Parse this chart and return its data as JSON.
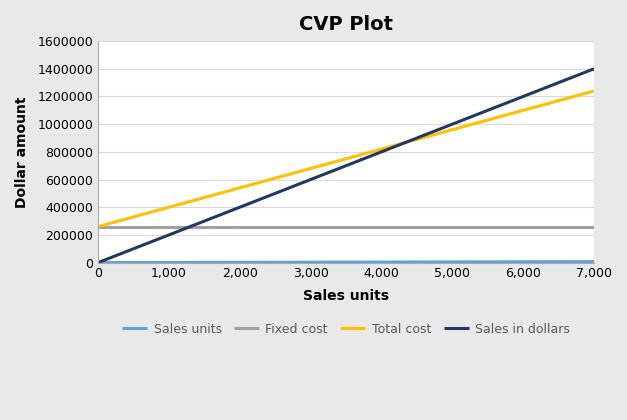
{
  "title": "CVP Plot",
  "xlabel": "Sales units",
  "ylabel": "Dollar amount",
  "xlim": [
    0,
    7000
  ],
  "ylim": [
    0,
    1600000
  ],
  "xticks": [
    0,
    1000,
    2000,
    3000,
    4000,
    5000,
    6000,
    7000
  ],
  "yticks": [
    0,
    200000,
    400000,
    600000,
    800000,
    1000000,
    1200000,
    1400000,
    1600000
  ],
  "lines": [
    {
      "label": "Sales units",
      "color": "#5BA3D9",
      "x": [
        0,
        7000
      ],
      "y": [
        0,
        7000
      ],
      "linewidth": 2.2
    },
    {
      "label": "Fixed cost",
      "color": "#A0A0A0",
      "x": [
        0,
        7000
      ],
      "y": [
        260000,
        260000
      ],
      "linewidth": 2.2
    },
    {
      "label": "Total cost",
      "color": "#FFC000",
      "x": [
        0,
        7000
      ],
      "y": [
        260000,
        1240000
      ],
      "linewidth": 2.2
    },
    {
      "label": "Sales in dollars",
      "color": "#203864",
      "x": [
        0,
        7000
      ],
      "y": [
        0,
        1400000
      ],
      "linewidth": 2.2
    }
  ],
  "legend_ncol": 4,
  "figure_facecolor": "#e9e9e9",
  "plot_facecolor": "#ffffff",
  "grid_color": "#d9d9d9",
  "title_fontsize": 14,
  "axis_label_fontsize": 10,
  "tick_fontsize": 9,
  "legend_fontsize": 9
}
